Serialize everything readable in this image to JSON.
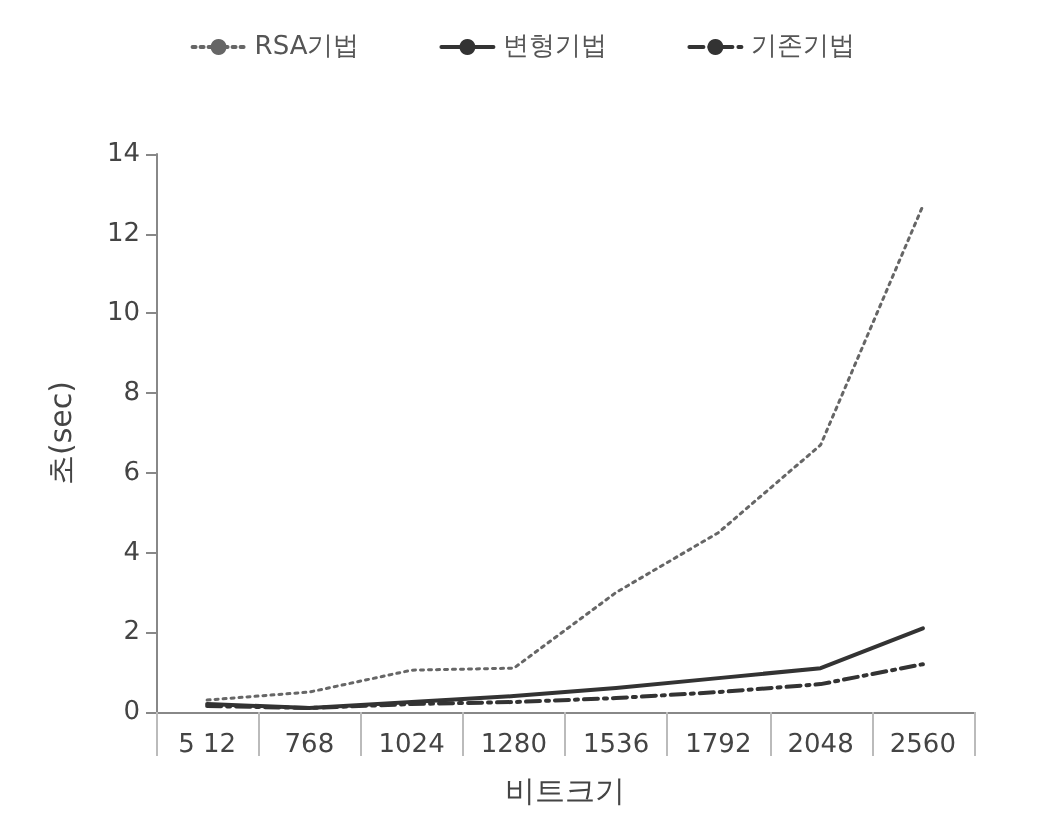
{
  "chart_data": {
    "type": "line",
    "xlabel": "비트크기",
    "ylabel": "초(sec)",
    "categories": [
      "5 12",
      "768",
      "1024",
      "1280",
      "1536",
      "1792",
      "2048",
      "2560"
    ],
    "series": [
      {
        "name": "RSA기법",
        "color": "#666666",
        "line_style": "dotted",
        "values": [
          0.3,
          0.5,
          1.05,
          1.1,
          3.0,
          4.5,
          6.7,
          12.7
        ]
      },
      {
        "name": "변형기법",
        "color": "#333333",
        "line_style": "solid",
        "values": [
          0.2,
          0.1,
          0.25,
          0.4,
          0.6,
          0.85,
          1.1,
          2.1
        ]
      },
      {
        "name": "기존기법",
        "color": "#333333",
        "line_style": "dashed",
        "values": [
          0.15,
          0.1,
          0.2,
          0.25,
          0.35,
          0.5,
          0.7,
          1.2
        ]
      }
    ],
    "ylim": [
      0,
      14
    ],
    "yticks": [
      0,
      2,
      4,
      6,
      8,
      10,
      12,
      14
    ],
    "grid": false,
    "legend": "top",
    "marker": "none"
  }
}
